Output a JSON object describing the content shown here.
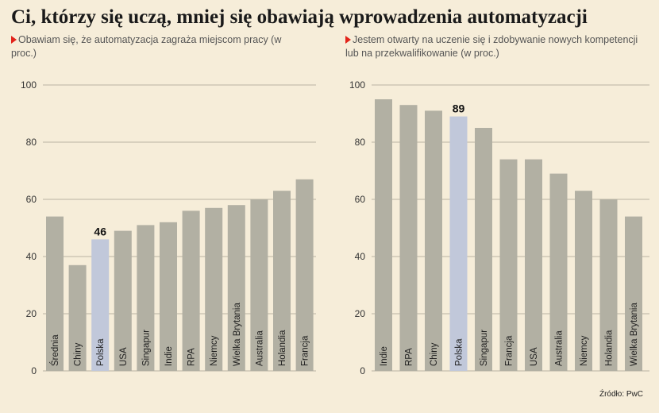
{
  "title": "Ci, którzy się uczą, mniej się obawiają wprowadzenia automatyzacji",
  "source": "Źródło: PwC",
  "colors": {
    "bar": "#b2b0a3",
    "highlight": "#c1c8da",
    "background": "#f6edd9",
    "accent": "#e2231a"
  },
  "chart_data": [
    {
      "type": "bar",
      "subtitle": "Obawiam się, że automatyzacja zagraża miejscom pracy (w proc.)",
      "categories": [
        "Średnia",
        "Chiny",
        "Polska",
        "USA",
        "Singapur",
        "Indie",
        "RPA",
        "Niemcy",
        "Wielka Brytania",
        "Australia",
        "Holandia",
        "Francja"
      ],
      "values": [
        54,
        37,
        46,
        49,
        51,
        52,
        56,
        57,
        58,
        60,
        63,
        67
      ],
      "highlight": "Polska",
      "highlight_label": "46",
      "yticks": [
        "0",
        "20",
        "40",
        "60",
        "80",
        "100"
      ],
      "ylim": [
        0,
        100
      ],
      "grid": true
    },
    {
      "type": "bar",
      "subtitle": "Jestem otwarty na uczenie się i zdobywanie nowych kompetencji lub na przekwalifikowanie (w proc.)",
      "categories": [
        "Indie",
        "RPA",
        "Chiny",
        "Polska",
        "Singapur",
        "Francja",
        "USA",
        "Australia",
        "Niemcy",
        "Holandia",
        "Wielka Brytania"
      ],
      "values": [
        95,
        93,
        91,
        89,
        85,
        74,
        74,
        69,
        63,
        60,
        54
      ],
      "highlight": "Polska",
      "highlight_label": "89",
      "yticks": [
        "0",
        "20",
        "40",
        "60",
        "80",
        "100"
      ],
      "ylim": [
        0,
        100
      ],
      "grid": true
    }
  ]
}
